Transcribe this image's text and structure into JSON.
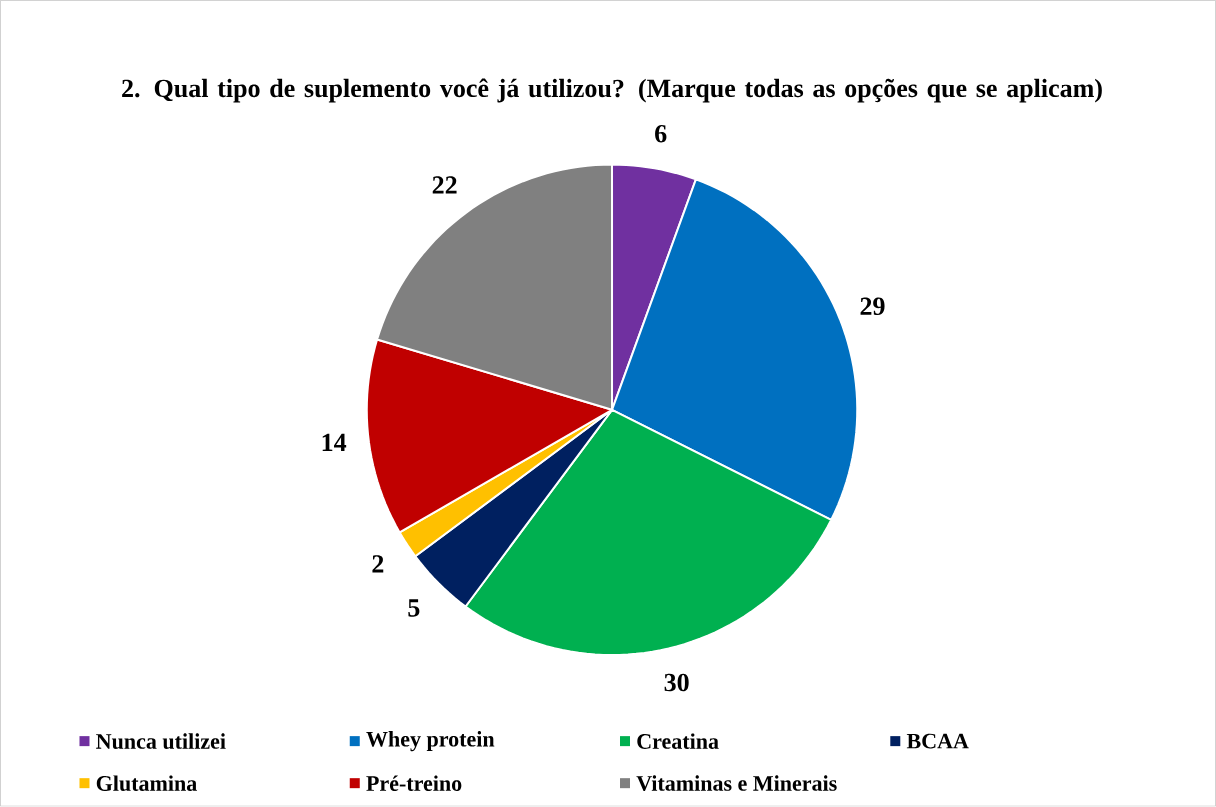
{
  "chart_data": {
    "type": "pie",
    "title": "2. Qual tipo de suplemento você já utilizou? (Marque todas as opções que se aplicam)",
    "categories": [
      "Nunca utilizei",
      "Whey protein",
      "Creatina",
      "BCAA",
      "Glutamina",
      "Pré-treino",
      "Vitaminas e Minerais"
    ],
    "values": [
      6,
      29,
      30,
      5,
      2,
      14,
      22
    ],
    "colors": [
      "#7030a0",
      "#0070c0",
      "#00b050",
      "#002060",
      "#ffc000",
      "#c00000",
      "#808080"
    ],
    "data_labels": true,
    "legend": "bottom"
  }
}
